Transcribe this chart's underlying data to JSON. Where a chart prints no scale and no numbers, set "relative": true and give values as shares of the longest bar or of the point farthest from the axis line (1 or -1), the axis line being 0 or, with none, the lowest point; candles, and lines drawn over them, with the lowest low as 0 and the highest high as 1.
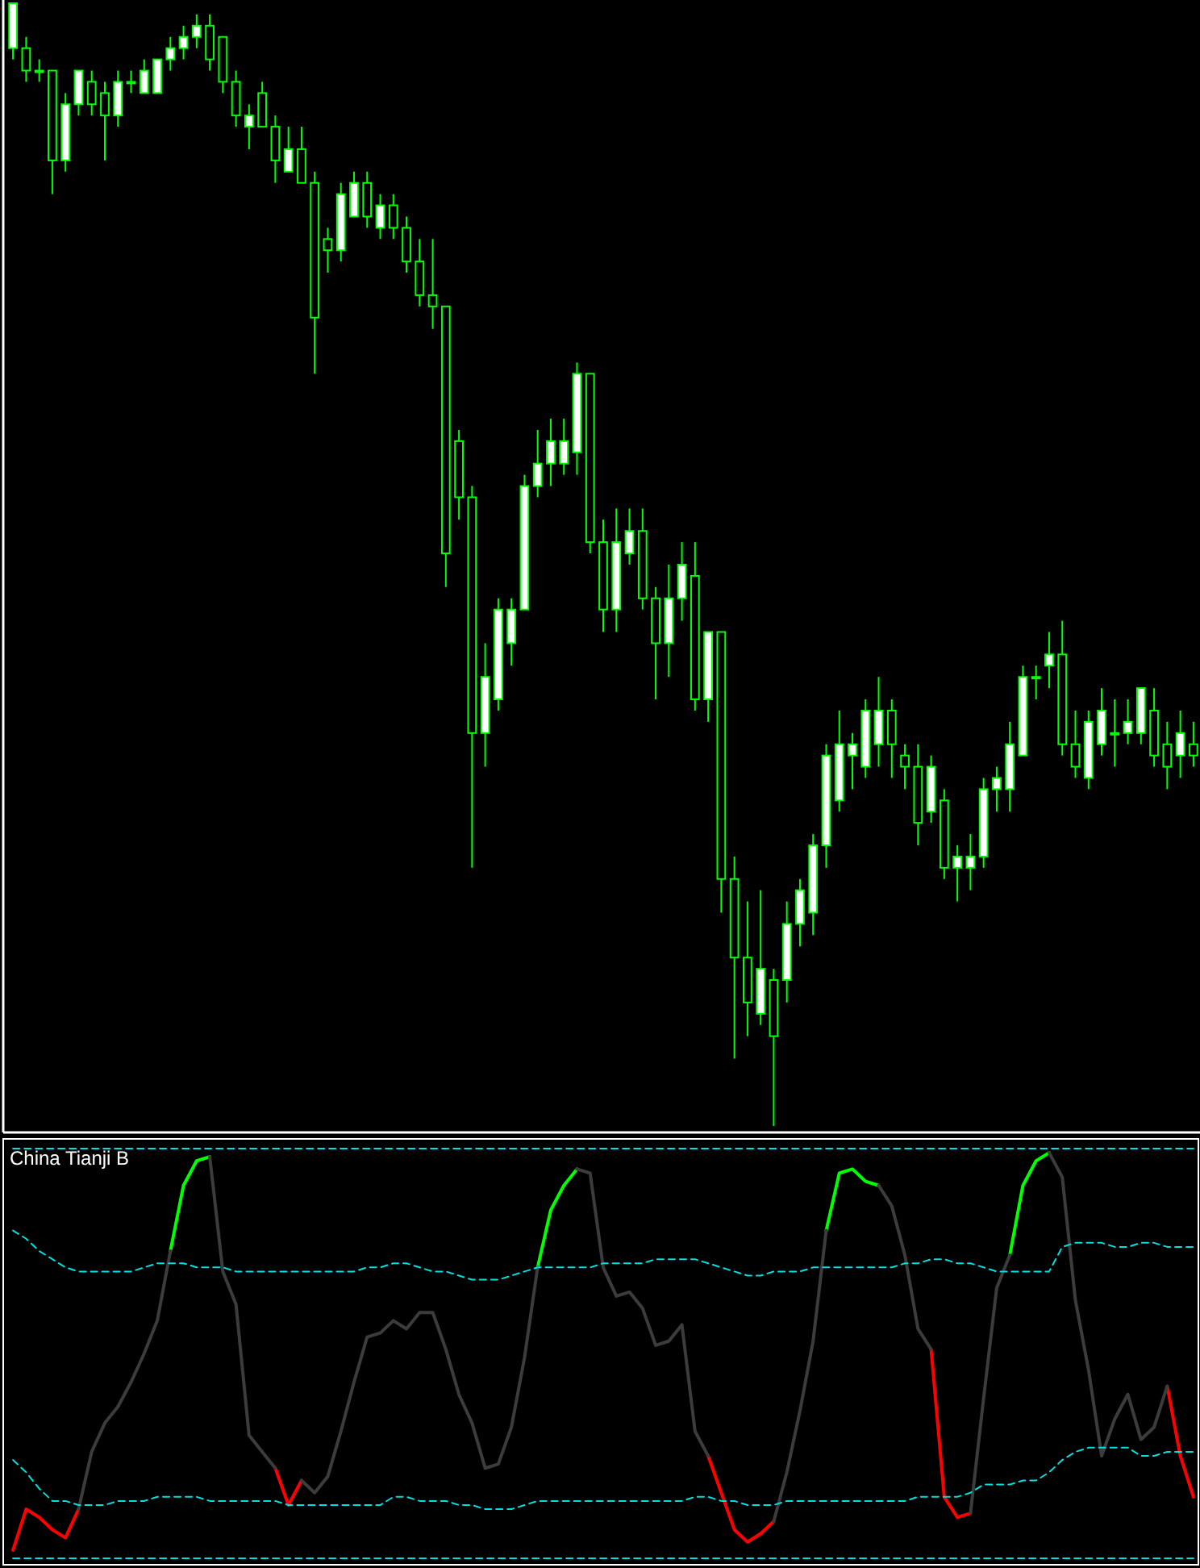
{
  "chart_data": [
    {
      "type": "candlestick",
      "relative": true,
      "color": "#00ff00",
      "categories": [
        null,
        null,
        null,
        null,
        null,
        null,
        null,
        null,
        null,
        null,
        null,
        null,
        null,
        null,
        null,
        null,
        null,
        null,
        null,
        null,
        null,
        null,
        null,
        null,
        null,
        null,
        null,
        null,
        null,
        null,
        null,
        null,
        null,
        null,
        null,
        null,
        null,
        null,
        null,
        null,
        null,
        null,
        null,
        null,
        null,
        null,
        null,
        null,
        null,
        null,
        null,
        null,
        null,
        null,
        null,
        null,
        null,
        null,
        null,
        null,
        null,
        null,
        null,
        null,
        null,
        null,
        null,
        null,
        null,
        null,
        null,
        null,
        null,
        null,
        null,
        null,
        null,
        null,
        null,
        null,
        null,
        null,
        null,
        null,
        null,
        null,
        null,
        null,
        null,
        null,
        null
      ],
      "ohlc": [
        [
          0.96,
          1,
          0.95,
          1.0
        ],
        [
          0.96,
          0.97,
          0.93,
          0.94
        ],
        [
          0.94,
          0.95,
          0.93,
          0.94
        ],
        [
          0.94,
          0.94,
          0.83,
          0.86
        ],
        [
          0.86,
          0.92,
          0.85,
          0.91
        ],
        [
          0.91,
          0.94,
          0.9,
          0.94
        ],
        [
          0.93,
          0.94,
          0.9,
          0.91
        ],
        [
          0.92,
          0.93,
          0.86,
          0.9
        ],
        [
          0.9,
          0.94,
          0.89,
          0.93
        ],
        [
          0.93,
          0.94,
          0.92,
          0.93
        ],
        [
          0.92,
          0.95,
          0.92,
          0.94
        ],
        [
          0.92,
          0.95,
          0.92,
          0.95
        ],
        [
          0.95,
          0.97,
          0.94,
          0.96
        ],
        [
          0.96,
          0.98,
          0.95,
          0.97
        ],
        [
          0.97,
          0.99,
          0.96,
          0.98
        ],
        [
          0.98,
          0.99,
          0.94,
          0.95
        ],
        [
          0.97,
          0.97,
          0.92,
          0.93
        ],
        [
          0.93,
          0.94,
          0.89,
          0.9
        ],
        [
          0.89,
          0.91,
          0.87,
          0.9
        ],
        [
          0.92,
          0.93,
          0.89,
          0.89
        ],
        [
          0.89,
          0.9,
          0.84,
          0.86
        ],
        [
          0.85,
          0.89,
          0.85,
          0.87
        ],
        [
          0.87,
          0.89,
          0.84,
          0.84
        ],
        [
          0.84,
          0.85,
          0.67,
          0.72
        ],
        [
          0.79,
          0.8,
          0.76,
          0.78
        ],
        [
          0.78,
          0.84,
          0.77,
          0.83
        ],
        [
          0.81,
          0.85,
          0.81,
          0.84
        ],
        [
          0.84,
          0.85,
          0.8,
          0.81
        ],
        [
          0.8,
          0.83,
          0.79,
          0.82
        ],
        [
          0.82,
          0.83,
          0.79,
          0.8
        ],
        [
          0.8,
          0.81,
          0.76,
          0.77
        ],
        [
          0.77,
          0.79,
          0.73,
          0.74
        ],
        [
          0.74,
          0.79,
          0.71,
          0.73
        ],
        [
          0.73,
          0.73,
          0.48,
          0.51
        ],
        [
          0.61,
          0.62,
          0.54,
          0.56
        ],
        [
          0.56,
          0.57,
          0.23,
          0.35
        ],
        [
          0.35,
          0.43,
          0.32,
          0.4
        ],
        [
          0.38,
          0.47,
          0.37,
          0.46
        ],
        [
          0.43,
          0.47,
          0.41,
          0.46
        ],
        [
          0.46,
          0.58,
          0.46,
          0.57
        ],
        [
          0.57,
          0.62,
          0.56,
          0.59
        ],
        [
          0.59,
          0.63,
          0.57,
          0.61
        ],
        [
          0.59,
          0.63,
          0.58,
          0.61
        ],
        [
          0.6,
          0.68,
          0.58,
          0.67
        ],
        [
          0.67,
          0.67,
          0.51,
          0.52
        ],
        [
          0.52,
          0.54,
          0.44,
          0.46
        ],
        [
          0.46,
          0.55,
          0.44,
          0.52
        ],
        [
          0.51,
          0.55,
          0.5,
          0.53
        ],
        [
          0.53,
          0.55,
          0.46,
          0.47
        ],
        [
          0.47,
          0.48,
          0.38,
          0.43
        ],
        [
          0.43,
          0.5,
          0.4,
          0.47
        ],
        [
          0.47,
          0.52,
          0.45,
          0.5
        ],
        [
          0.49,
          0.52,
          0.37,
          0.38
        ],
        [
          0.38,
          0.44,
          0.36,
          0.44
        ],
        [
          0.44,
          0.44,
          0.19,
          0.22
        ],
        [
          0.22,
          0.24,
          0.06,
          0.15
        ],
        [
          0.15,
          0.2,
          0.08,
          0.11
        ],
        [
          0.1,
          0.21,
          0.09,
          0.14
        ],
        [
          0.13,
          0.14,
          0,
          0.08
        ],
        [
          0.13,
          0.2,
          0.11,
          0.18
        ],
        [
          0.18,
          0.22,
          0.16,
          0.21
        ],
        [
          0.19,
          0.26,
          0.17,
          0.25
        ],
        [
          0.25,
          0.34,
          0.23,
          0.33
        ],
        [
          0.29,
          0.37,
          0.28,
          0.34
        ],
        [
          0.33,
          0.35,
          0.3,
          0.34
        ],
        [
          0.32,
          0.38,
          0.31,
          0.37
        ],
        [
          0.34,
          0.4,
          0.32,
          0.37
        ],
        [
          0.37,
          0.38,
          0.31,
          0.34
        ],
        [
          0.33,
          0.34,
          0.3,
          0.32
        ],
        [
          0.32,
          0.34,
          0.25,
          0.27
        ],
        [
          0.28,
          0.33,
          0.27,
          0.32
        ],
        [
          0.29,
          0.3,
          0.22,
          0.23
        ],
        [
          0.23,
          0.25,
          0.2,
          0.24
        ],
        [
          0.23,
          0.26,
          0.21,
          0.24
        ],
        [
          0.24,
          0.31,
          0.23,
          0.3
        ],
        [
          0.3,
          0.32,
          0.28,
          0.31
        ],
        [
          0.3,
          0.36,
          0.28,
          0.34
        ],
        [
          0.33,
          0.41,
          0.33,
          0.4
        ],
        [
          0.4,
          0.41,
          0.38,
          0.4
        ],
        [
          0.41,
          0.44,
          0.39,
          0.42
        ],
        [
          0.42,
          0.45,
          0.33,
          0.34
        ],
        [
          0.34,
          0.37,
          0.31,
          0.32
        ],
        [
          0.31,
          0.37,
          0.3,
          0.36
        ],
        [
          0.34,
          0.39,
          0.33,
          0.37
        ],
        [
          0.35,
          0.38,
          0.32,
          0.35
        ],
        [
          0.35,
          0.38,
          0.34,
          0.36
        ],
        [
          0.35,
          0.39,
          0.34,
          0.39
        ],
        [
          0.37,
          0.39,
          0.32,
          0.33
        ],
        [
          0.34,
          0.36,
          0.3,
          0.32
        ],
        [
          0.33,
          0.37,
          0.31,
          0.35
        ],
        [
          0.34,
          0.36,
          0.32,
          0.33
        ]
      ]
    },
    {
      "type": "line",
      "title": "China Tianji B",
      "relative": true,
      "categories": [
        null,
        null,
        null,
        null,
        null,
        null,
        null,
        null,
        null,
        null,
        null,
        null,
        null,
        null,
        null,
        null,
        null,
        null,
        null,
        null,
        null,
        null,
        null,
        null,
        null,
        null,
        null,
        null,
        null,
        null,
        null,
        null,
        null,
        null,
        null,
        null,
        null,
        null,
        null,
        null,
        null,
        null,
        null,
        null,
        null,
        null,
        null,
        null,
        null,
        null,
        null,
        null,
        null,
        null,
        null,
        null,
        null,
        null,
        null,
        null,
        null,
        null,
        null,
        null,
        null,
        null,
        null,
        null,
        null,
        null,
        null,
        null,
        null,
        null,
        null,
        null,
        null,
        null,
        null,
        null,
        null,
        null,
        null,
        null,
        null,
        null,
        null,
        null,
        null,
        null,
        null
      ],
      "series": [
        {
          "color": "#00ff00",
          "values": [
            null,
            null,
            null,
            null,
            null,
            null,
            null,
            null,
            null,
            null,
            null,
            null,
            0.75,
            0.91,
            0.97,
            0.98,
            null,
            null,
            null,
            null,
            null,
            null,
            null,
            null,
            null,
            null,
            null,
            null,
            null,
            null,
            null,
            null,
            null,
            null,
            null,
            null,
            null,
            null,
            null,
            null,
            0.71,
            0.85,
            0.91,
            0.95,
            null,
            null,
            null,
            null,
            null,
            null,
            null,
            null,
            null,
            null,
            null,
            null,
            null,
            null,
            null,
            null,
            null,
            null,
            0.8,
            0.94,
            0.95,
            0.92,
            0.91,
            null,
            null,
            null,
            null,
            null,
            null,
            null,
            null,
            null,
            0.74,
            0.91,
            0.97,
            0.99,
            null,
            null,
            null,
            null,
            null,
            null,
            null,
            null,
            null,
            null,
            null
          ]
        },
        {
          "color": "#ff0000",
          "values": [
            0.02,
            0.12,
            0.1,
            0.07,
            0.05,
            0.12,
            null,
            null,
            null,
            null,
            null,
            null,
            null,
            null,
            null,
            null,
            null,
            null,
            null,
            null,
            0.22,
            0.13,
            0.19,
            null,
            null,
            null,
            null,
            null,
            null,
            null,
            null,
            null,
            null,
            null,
            null,
            null,
            null,
            null,
            null,
            null,
            null,
            null,
            null,
            null,
            null,
            null,
            null,
            null,
            null,
            null,
            null,
            null,
            null,
            0.25,
            0.16,
            0.07,
            0.04,
            0.06,
            0.09,
            null,
            null,
            null,
            null,
            null,
            null,
            null,
            null,
            null,
            null,
            null,
            0.51,
            0.15,
            0.1,
            0.11,
            null,
            null,
            null,
            null,
            null,
            null,
            null,
            null,
            null,
            null,
            null,
            null,
            null,
            null,
            0.42,
            0.25,
            0.15
          ]
        },
        {
          "color": "#3c3c3c",
          "values": [
            null,
            null,
            null,
            null,
            null,
            0.12,
            0.26,
            0.33,
            0.37,
            0.43,
            0.5,
            0.58,
            0.75,
            null,
            null,
            0.98,
            0.7,
            0.62,
            0.3,
            0.26,
            0.22,
            null,
            0.19,
            0.16,
            0.2,
            0.31,
            0.43,
            0.54,
            0.55,
            0.58,
            0.56,
            0.6,
            0.6,
            0.51,
            0.4,
            0.33,
            0.22,
            0.23,
            0.32,
            0.49,
            0.71,
            null,
            null,
            0.95,
            0.94,
            0.71,
            0.64,
            0.65,
            0.61,
            0.52,
            0.53,
            0.57,
            0.31,
            0.25,
            null,
            null,
            null,
            null,
            0.09,
            0.21,
            0.36,
            0.53,
            0.8,
            null,
            null,
            null,
            0.91,
            0.86,
            0.74,
            0.56,
            0.51,
            null,
            null,
            0.11,
            0.39,
            0.66,
            0.74,
            null,
            null,
            0.99,
            0.93,
            0.63,
            0.46,
            0.25,
            0.34,
            0.4,
            0.29,
            0.32,
            0.42,
            null,
            null
          ]
        },
        {
          "color": "#00e0e0",
          "line_style": "dashed",
          "values": [
            0.8,
            0.78,
            0.75,
            0.73,
            0.71,
            0.7,
            0.7,
            0.7,
            0.7,
            0.7,
            0.71,
            0.72,
            0.72,
            0.72,
            0.71,
            0.71,
            0.71,
            0.7,
            0.7,
            0.7,
            0.7,
            0.7,
            0.7,
            0.7,
            0.7,
            0.7,
            0.7,
            0.71,
            0.71,
            0.72,
            0.72,
            0.71,
            0.7,
            0.7,
            0.69,
            0.68,
            0.68,
            0.68,
            0.69,
            0.7,
            0.71,
            0.71,
            0.71,
            0.71,
            0.71,
            0.72,
            0.72,
            0.72,
            0.72,
            0.73,
            0.73,
            0.73,
            0.73,
            0.72,
            0.71,
            0.7,
            0.69,
            0.69,
            0.7,
            0.7,
            0.7,
            0.71,
            0.71,
            0.71,
            0.71,
            0.71,
            0.71,
            0.71,
            0.72,
            0.72,
            0.73,
            0.73,
            0.72,
            0.72,
            0.71,
            0.7,
            0.7,
            0.7,
            0.7,
            0.7,
            0.76,
            0.77,
            0.77,
            0.77,
            0.76,
            0.76,
            0.77,
            0.77,
            0.76,
            0.76,
            0.76
          ]
        },
        {
          "color": "#00e0e0",
          "line_style": "dashed",
          "values": [
            0.24,
            0.21,
            0.17,
            0.14,
            0.14,
            0.13,
            0.13,
            0.13,
            0.14,
            0.14,
            0.14,
            0.15,
            0.15,
            0.15,
            0.15,
            0.14,
            0.14,
            0.14,
            0.14,
            0.14,
            0.14,
            0.13,
            0.13,
            0.13,
            0.13,
            0.13,
            0.13,
            0.13,
            0.13,
            0.15,
            0.15,
            0.14,
            0.14,
            0.14,
            0.13,
            0.13,
            0.12,
            0.12,
            0.12,
            0.13,
            0.14,
            0.14,
            0.14,
            0.14,
            0.14,
            0.14,
            0.14,
            0.14,
            0.14,
            0.14,
            0.14,
            0.14,
            0.15,
            0.15,
            0.14,
            0.14,
            0.13,
            0.13,
            0.13,
            0.14,
            0.14,
            0.14,
            0.14,
            0.14,
            0.14,
            0.14,
            0.14,
            0.14,
            0.14,
            0.15,
            0.15,
            0.15,
            0.15,
            0.16,
            0.18,
            0.18,
            0.18,
            0.19,
            0.19,
            0.21,
            0.24,
            0.26,
            0.27,
            0.27,
            0.27,
            0.27,
            0.25,
            0.25,
            0.26,
            0.26,
            0.26
          ]
        },
        {
          "color": "#00e0e0",
          "line_style": "dashed",
          "values": [
            1,
            1,
            1,
            1,
            1,
            1,
            1,
            1,
            1,
            1,
            1,
            1,
            1,
            1,
            1,
            1,
            1,
            1,
            1,
            1,
            1,
            1,
            1,
            1,
            1,
            1,
            1,
            1,
            1,
            1,
            1,
            1,
            1,
            1,
            1,
            1,
            1,
            1,
            1,
            1,
            1,
            1,
            1,
            1,
            1,
            1,
            1,
            1,
            1,
            1,
            1,
            1,
            1,
            1,
            1,
            1,
            1,
            1,
            1,
            1,
            1,
            1,
            1,
            1,
            1,
            1,
            1,
            1,
            1,
            1,
            1,
            1,
            1,
            1,
            1,
            1,
            1,
            1,
            1,
            1,
            1,
            1,
            1,
            1,
            1,
            1,
            1,
            1,
            1,
            1,
            1
          ]
        },
        {
          "color": "#00e0e0",
          "line_style": "dashed",
          "values": [
            0,
            0,
            0,
            0,
            0,
            0,
            0,
            0,
            0,
            0,
            0,
            0,
            0,
            0,
            0,
            0,
            0,
            0,
            0,
            0,
            0,
            0,
            0,
            0,
            0,
            0,
            0,
            0,
            0,
            0,
            0,
            0,
            0,
            0,
            0,
            0,
            0,
            0,
            0,
            0,
            0,
            0,
            0,
            0,
            0,
            0,
            0,
            0,
            0,
            0,
            0,
            0,
            0,
            0,
            0,
            0,
            0,
            0,
            0,
            0,
            0,
            0,
            0,
            0,
            0,
            0,
            0,
            0,
            0,
            0,
            0,
            0,
            0,
            0,
            0,
            0,
            0,
            0,
            0,
            0,
            0,
            0,
            0,
            0,
            0,
            0,
            0,
            0,
            0,
            0,
            0
          ]
        }
      ]
    }
  ]
}
